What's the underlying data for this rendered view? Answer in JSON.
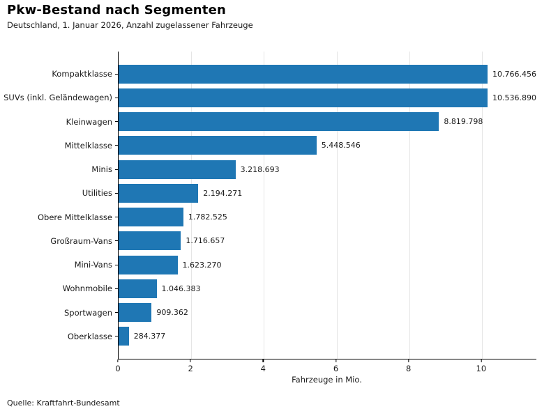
{
  "chart_data": {
    "type": "bar",
    "orientation": "horizontal",
    "title": "Pkw-Bestand nach Segmenten",
    "subtitle": "Deutschland, 1. Januar 2026, Anzahl zugelassener Fahrzeuge",
    "categories": [
      "Kompaktklasse",
      "SUVs (inkl. Geländewagen)",
      "Kleinwagen",
      "Mittelklasse",
      "Minis",
      "Utilities",
      "Obere Mittelklasse",
      "Großraum-Vans",
      "Mini-Vans",
      "Wohnmobile",
      "Sportwagen",
      "Oberklasse"
    ],
    "values": [
      10766456,
      10536890,
      8819798,
      5448546,
      3218693,
      2194271,
      1782525,
      1716657,
      1623270,
      1046383,
      909362,
      284377
    ],
    "value_labels": [
      "10.766.456",
      "10.536.890",
      "8.819.798",
      "5.448.546",
      "3.218.693",
      "2.194.271",
      "1.782.525",
      "1.716.657",
      "1.623.270",
      "1.046.383",
      "909.362",
      "284.377"
    ],
    "xlabel": "Fahrzeuge in Mio.",
    "xlim": [
      0,
      11.5
    ],
    "xticks": [
      0,
      2,
      4,
      6,
      8,
      10
    ],
    "xtick_labels": [
      "0",
      "2",
      "4",
      "6",
      "8",
      "10"
    ],
    "grid": "vertical",
    "legend": "none",
    "colors": {
      "bar": "#1f77b4",
      "gridline": "#e5e5e5",
      "axis": "#000000",
      "text": "#1a1a1a"
    },
    "source": "Quelle: Kraftfahrt-Bundesamt"
  }
}
